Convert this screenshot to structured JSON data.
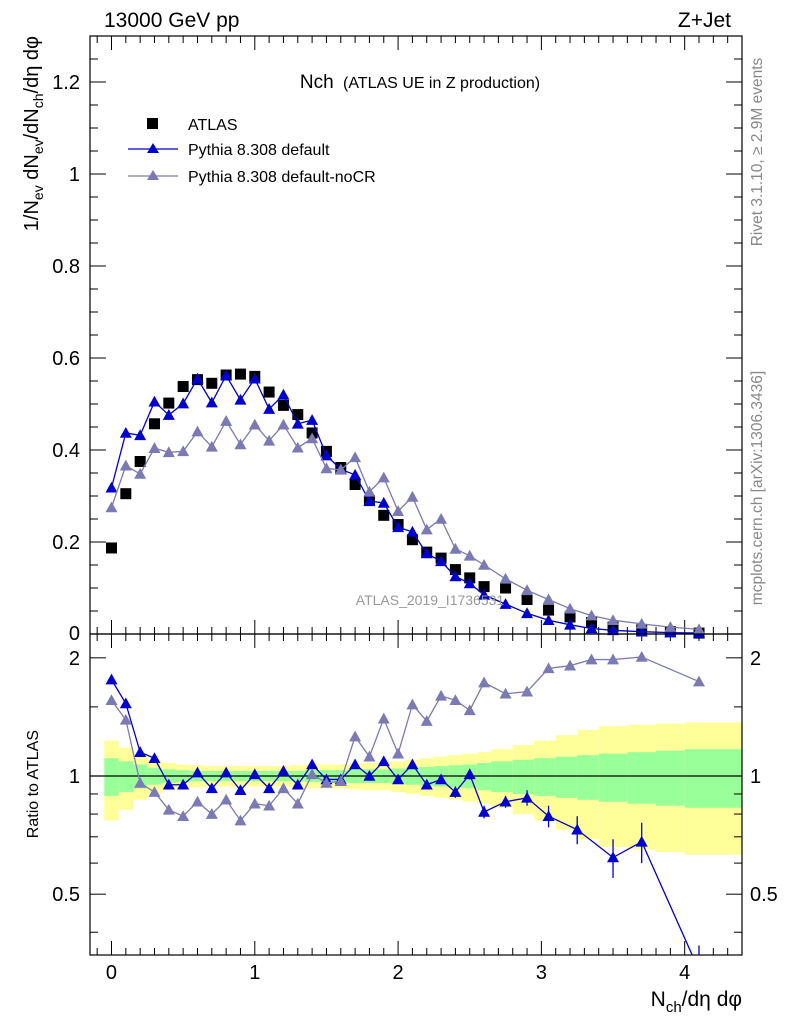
{
  "header": {
    "left": "13000 GeV pp",
    "right": "Z+Jet"
  },
  "side_text": {
    "rivet": "Rivet 3.1.10, ≥ 2.9M events",
    "mcplots": "mcplots.cern.ch [arXiv:1306.3436]"
  },
  "watermark": "ATLAS_2019_I1736531",
  "chart_data": [
    {
      "type": "scatter",
      "title_main": "Nch",
      "title_sub": "(ATLAS UE in Z production)",
      "ylabel": {
        "pre": "1/N",
        "sub1": "ev",
        "mid": " dN",
        "sub2": "ev",
        "mid2": "/dN",
        "sub3": "ch",
        "post": "/dη dφ"
      },
      "xlim": [
        -0.15,
        4.4
      ],
      "ylim": [
        0,
        1.3
      ],
      "yticks": [
        0.2,
        0.4,
        0.6,
        0.8,
        1,
        1.2
      ],
      "ytick_labels": [
        "0.2",
        "0.4",
        "0.6",
        "0.8",
        "1",
        "1.2"
      ],
      "y_zero_label": "0",
      "legend": [
        "ATLAS",
        "Pythia 8.308 default",
        "Pythia 8.308 default-noCR"
      ],
      "x": [
        0.0,
        0.1,
        0.2,
        0.3,
        0.4,
        0.5,
        0.6,
        0.7,
        0.8,
        0.9,
        1.0,
        1.1,
        1.2,
        1.3,
        1.4,
        1.5,
        1.6,
        1.7,
        1.8,
        1.9,
        2.0,
        2.1,
        2.2,
        2.3,
        2.4,
        2.5,
        2.6,
        2.75,
        2.9,
        3.05,
        3.2,
        3.35,
        3.5,
        3.7,
        3.9,
        4.1
      ],
      "series": [
        {
          "name": "ATLAS",
          "marker": "square",
          "color": "#000000",
          "values": [
            0.187,
            0.305,
            0.375,
            0.457,
            0.502,
            0.538,
            0.553,
            0.545,
            0.563,
            0.565,
            0.56,
            0.526,
            0.497,
            0.477,
            0.437,
            0.397,
            0.362,
            0.325,
            0.29,
            0.258,
            0.238,
            0.205,
            0.178,
            0.165,
            0.14,
            0.122,
            0.103,
            0.1,
            0.075,
            0.052,
            0.037,
            0.025,
            0.015,
            0.009,
            0.005,
            0.002
          ]
        },
        {
          "name": "Pythia 8.308 default",
          "marker": "triangle",
          "color": "#0000cc",
          "values": [
            0.318,
            0.437,
            0.432,
            0.505,
            0.476,
            0.501,
            0.555,
            0.503,
            0.562,
            0.509,
            0.555,
            0.489,
            0.52,
            0.457,
            0.465,
            0.388,
            0.358,
            0.346,
            0.289,
            0.285,
            0.232,
            0.222,
            0.175,
            0.158,
            0.125,
            0.11,
            0.085,
            0.065,
            0.045,
            0.03,
            0.02,
            0.012,
            0.008,
            0.005,
            0.003,
            0.002
          ]
        },
        {
          "name": "Pythia 8.308 default-noCR",
          "marker": "triangle",
          "color": "#7a7ab4",
          "values": [
            0.275,
            0.366,
            0.348,
            0.404,
            0.395,
            0.397,
            0.44,
            0.407,
            0.463,
            0.412,
            0.455,
            0.42,
            0.455,
            0.405,
            0.425,
            0.36,
            0.357,
            0.384,
            0.309,
            0.34,
            0.267,
            0.298,
            0.227,
            0.25,
            0.185,
            0.17,
            0.15,
            0.12,
            0.095,
            0.075,
            0.055,
            0.04,
            0.03,
            0.022,
            0.015,
            0.01
          ]
        }
      ]
    },
    {
      "type": "scatter",
      "ylabel": "Ratio to ATLAS",
      "xlabel": {
        "pre": "N",
        "sub": "ch",
        "post": "/dη dφ"
      },
      "xticks": [
        0,
        1,
        2,
        3,
        4
      ],
      "xtick_labels": [
        "0",
        "1",
        "2",
        "3",
        "4"
      ],
      "xlim": [
        -0.15,
        4.4
      ],
      "ylim": [
        0.35,
        2.3
      ],
      "yticks": [
        0.5,
        1,
        2
      ],
      "ytick_labels": [
        "0.5",
        "1",
        "2"
      ],
      "bands": {
        "x_edges": [
          -0.05,
          0.05,
          0.15,
          0.25,
          0.35,
          0.45,
          0.55,
          0.65,
          0.75,
          0.85,
          0.95,
          1.05,
          1.15,
          1.25,
          1.35,
          1.45,
          1.55,
          1.65,
          1.75,
          1.85,
          1.95,
          2.05,
          2.15,
          2.25,
          2.35,
          2.45,
          2.55,
          2.65,
          2.8,
          2.95,
          3.1,
          3.25,
          3.4,
          3.6,
          3.8,
          4.0,
          4.4
        ],
        "yellow_half": [
          0.23,
          0.18,
          0.13,
          0.1,
          0.08,
          0.07,
          0.065,
          0.06,
          0.06,
          0.06,
          0.06,
          0.06,
          0.06,
          0.065,
          0.07,
          0.07,
          0.07,
          0.075,
          0.08,
          0.08,
          0.09,
          0.1,
          0.11,
          0.12,
          0.13,
          0.14,
          0.15,
          0.17,
          0.2,
          0.23,
          0.27,
          0.31,
          0.34,
          0.35,
          0.36,
          0.37
        ],
        "green_half": [
          0.11,
          0.09,
          0.07,
          0.05,
          0.04,
          0.035,
          0.03,
          0.03,
          0.03,
          0.03,
          0.03,
          0.03,
          0.03,
          0.03,
          0.035,
          0.035,
          0.035,
          0.04,
          0.04,
          0.04,
          0.045,
          0.05,
          0.055,
          0.06,
          0.065,
          0.07,
          0.08,
          0.09,
          0.1,
          0.11,
          0.12,
          0.13,
          0.14,
          0.15,
          0.16,
          0.17
        ],
        "yellow_color": "#ffff99",
        "green_color": "#99ff99"
      },
      "series": [
        {
          "name": "Pythia 8.308 default",
          "color": "#0000cc",
          "values": [
            1.76,
            1.53,
            1.15,
            1.11,
            0.95,
            0.95,
            1.02,
            0.93,
            1.02,
            0.92,
            1.01,
            0.93,
            1.03,
            0.95,
            1.07,
            0.98,
            0.98,
            1.07,
            1.0,
            1.09,
            0.98,
            1.07,
            0.95,
            0.98,
            0.91,
            1.01,
            0.81,
            0.86,
            0.88,
            0.79,
            0.73,
            0.62,
            0.68,
            0.32
          ],
          "x_override": [
            0.0,
            0.1,
            0.2,
            0.3,
            0.4,
            0.5,
            0.6,
            0.7,
            0.8,
            0.9,
            1.0,
            1.1,
            1.2,
            1.3,
            1.4,
            1.5,
            1.6,
            1.7,
            1.8,
            1.9,
            2.0,
            2.1,
            2.2,
            2.3,
            2.4,
            2.5,
            2.6,
            2.75,
            2.9,
            3.05,
            3.25,
            3.5,
            3.7,
            4.1
          ],
          "err": [
            0.03,
            0.02,
            0.015,
            0.015,
            0.015,
            0.015,
            0.015,
            0.015,
            0.015,
            0.015,
            0.015,
            0.015,
            0.015,
            0.015,
            0.015,
            0.015,
            0.015,
            0.02,
            0.02,
            0.02,
            0.02,
            0.02,
            0.025,
            0.025,
            0.03,
            0.03,
            0.03,
            0.03,
            0.04,
            0.05,
            0.06,
            0.07,
            0.08,
            0.05
          ]
        },
        {
          "name": "Pythia 8.308 default-noCR",
          "color": "#7a7ab4",
          "values": [
            1.56,
            1.39,
            0.96,
            0.91,
            0.82,
            0.79,
            0.86,
            0.8,
            0.87,
            0.77,
            0.85,
            0.84,
            0.93,
            0.85,
            1.01,
            0.96,
            0.97,
            1.26,
            1.12,
            1.4,
            1.14,
            1.52,
            1.38,
            1.6,
            1.56,
            1.47,
            1.73,
            1.62,
            1.64,
            1.88,
            1.91,
            1.98,
            1.98,
            2.01,
            1.74
          ],
          "x_override": [
            0.0,
            0.1,
            0.2,
            0.3,
            0.4,
            0.5,
            0.6,
            0.7,
            0.8,
            0.9,
            1.0,
            1.1,
            1.2,
            1.3,
            1.4,
            1.5,
            1.6,
            1.7,
            1.8,
            1.9,
            2.0,
            2.1,
            2.2,
            2.3,
            2.4,
            2.5,
            2.6,
            2.75,
            2.9,
            3.05,
            3.2,
            3.35,
            3.5,
            3.7,
            4.1
          ],
          "err": [
            0.02,
            0.02,
            0.015,
            0.015,
            0.015,
            0.015,
            0.015,
            0.015,
            0.015,
            0.015,
            0.015,
            0.015,
            0.015,
            0.015,
            0.015,
            0.015,
            0.02,
            0.02,
            0.02,
            0.02,
            0.02,
            0.025,
            0.025,
            0.025,
            0.03,
            0.03,
            0.03,
            0.03,
            0.03,
            0.03,
            0.03,
            0.04,
            0.04,
            0.04,
            0.04
          ]
        }
      ]
    }
  ]
}
